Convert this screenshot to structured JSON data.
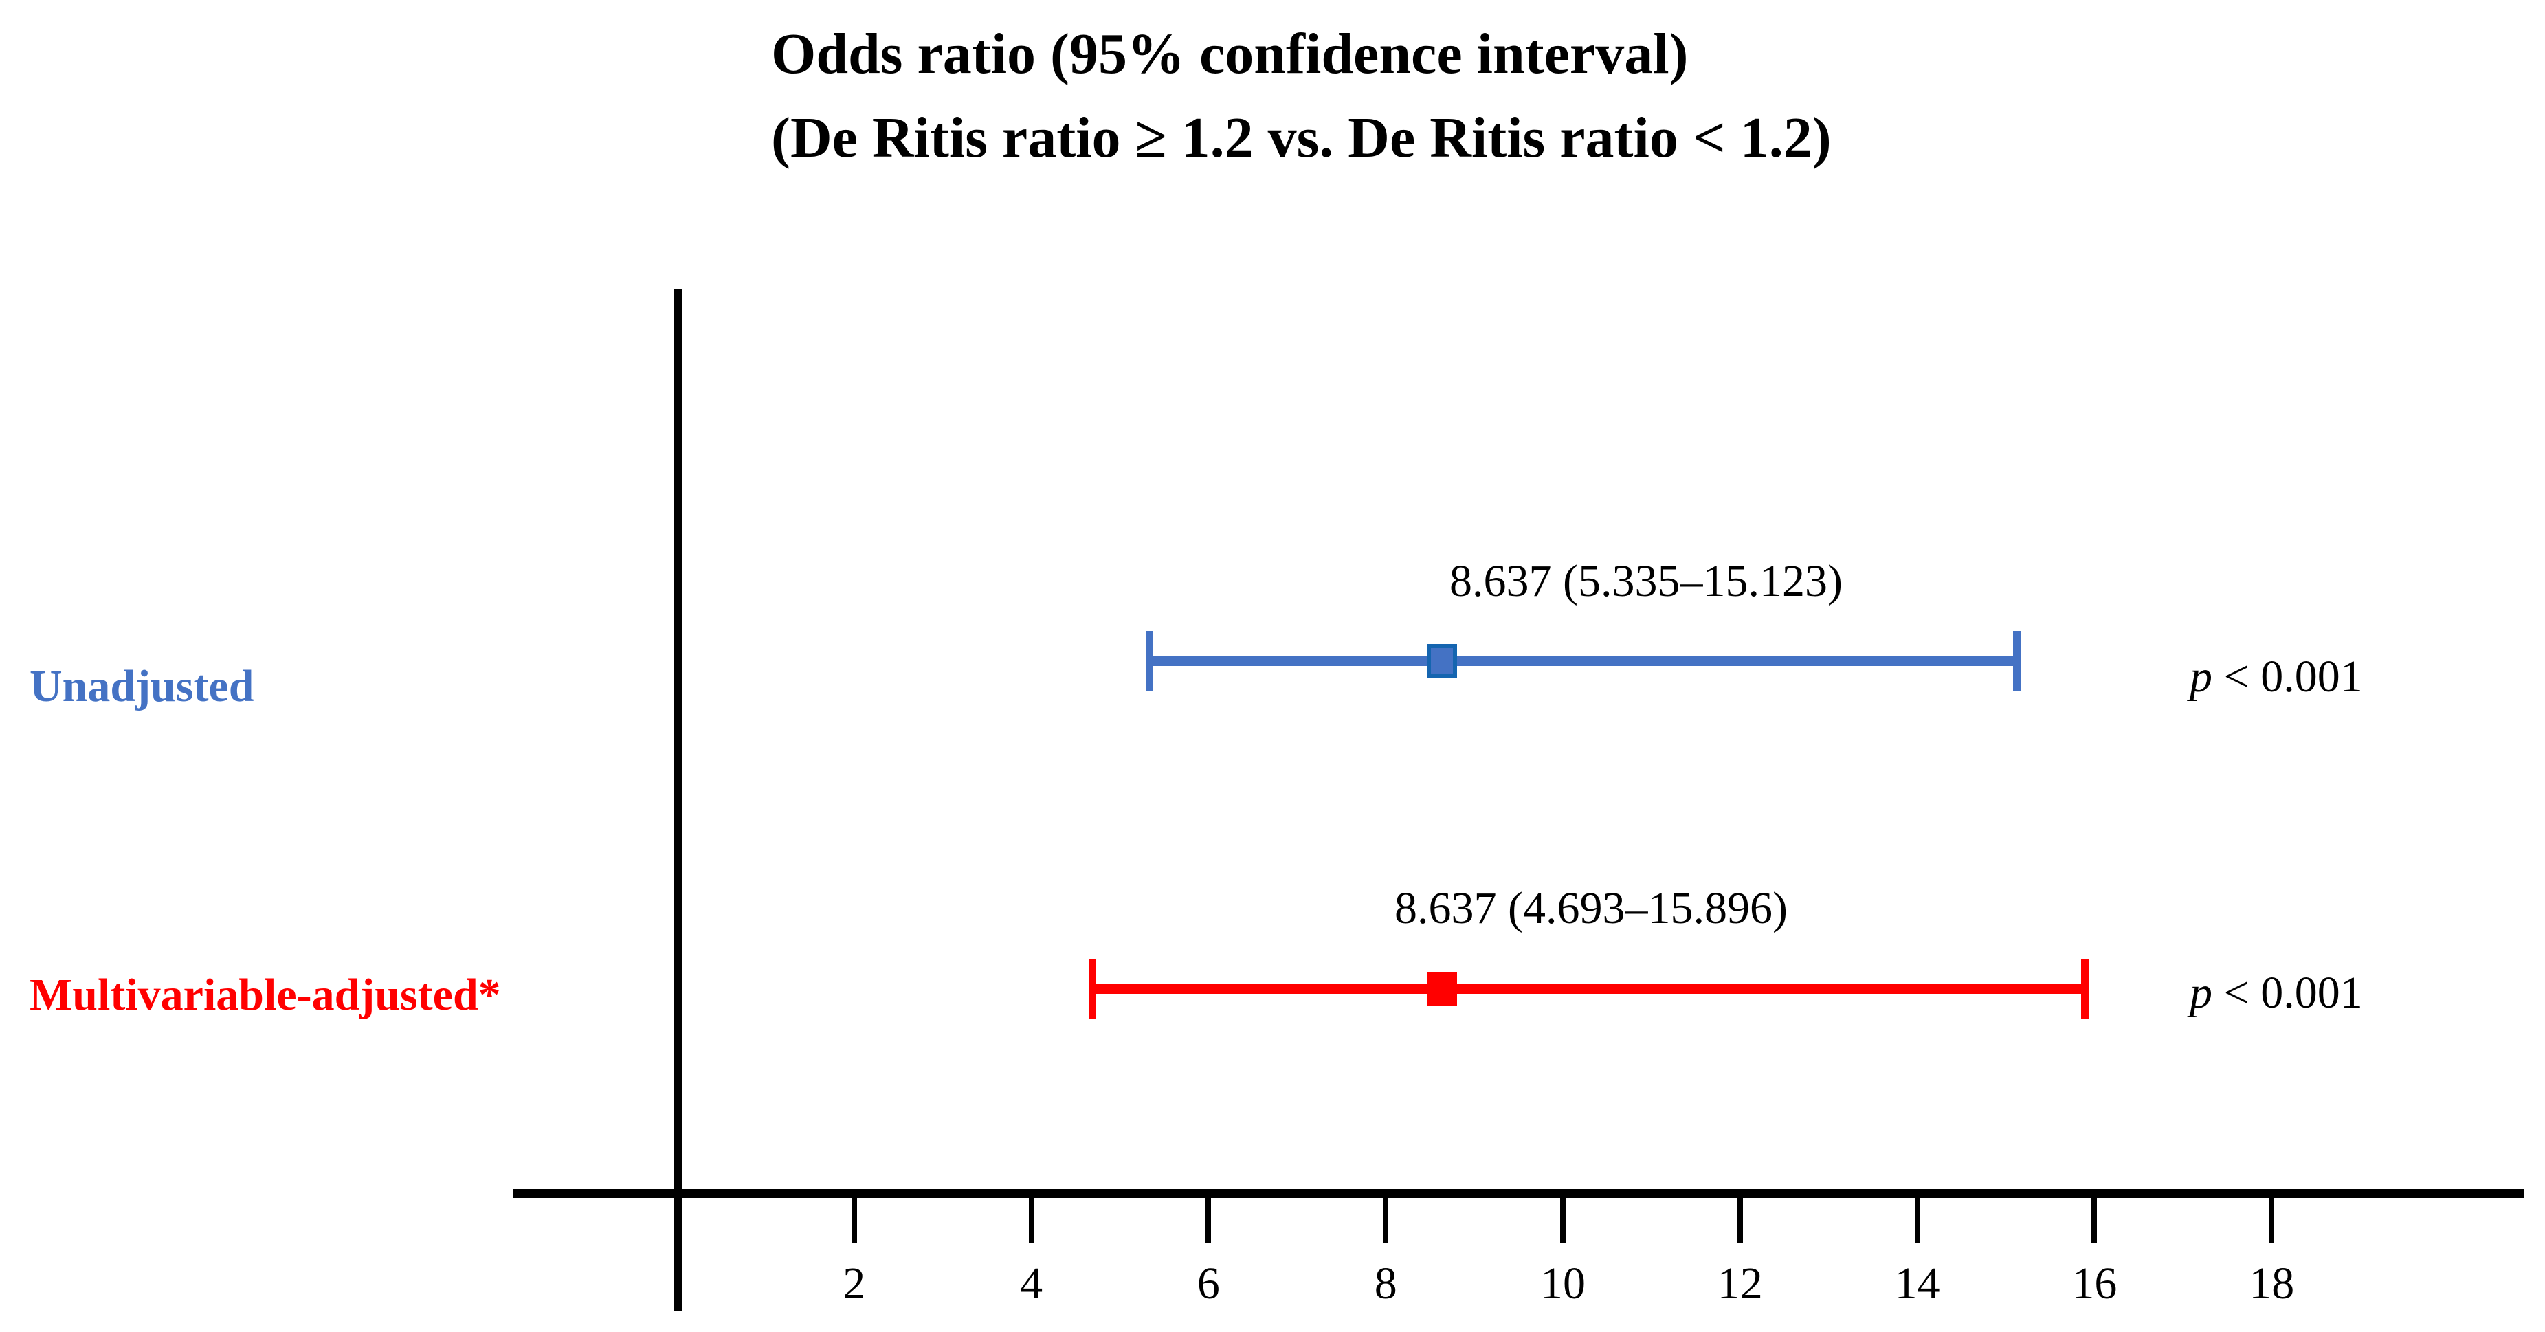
{
  "title": {
    "line1": "Odds ratio (95% confidence interval)",
    "line2": "(De Ritis ratio ≥ 1.2 vs. De Ritis ratio < 1.2)"
  },
  "colors": {
    "blue": "#4472C4",
    "blue_dark": "#1565B0",
    "red": "#FF0000",
    "axis_black": "#000000"
  },
  "chart_data": {
    "type": "forest",
    "title": "Odds ratio (95% confidence interval) (De Ritis ratio ≥ 1.2 vs. De Ritis ratio < 1.2)",
    "x_axis": {
      "ticks": [
        2,
        4,
        6,
        8,
        10,
        12,
        14,
        16,
        18
      ],
      "xlim": [
        -1.9,
        20.9
      ],
      "grid": false
    },
    "rows": [
      {
        "label": "Unadjusted",
        "or": 8.637,
        "ci_low": 5.335,
        "ci_high": 15.123,
        "estimate_label": "8.637 (5.335–15.123)",
        "p_label": "p < 0.001",
        "p_prefix": "p",
        "p_rest": "< 0.001",
        "color_key": "blue"
      },
      {
        "label": "Multivariable-adjusted*",
        "or": 8.637,
        "ci_low": 4.693,
        "ci_high": 15.896,
        "estimate_label": "8.637 (4.693–15.896)",
        "p_label": "p < 0.001",
        "p_prefix": "p",
        "p_rest": "< 0.001",
        "color_key": "red"
      }
    ]
  }
}
